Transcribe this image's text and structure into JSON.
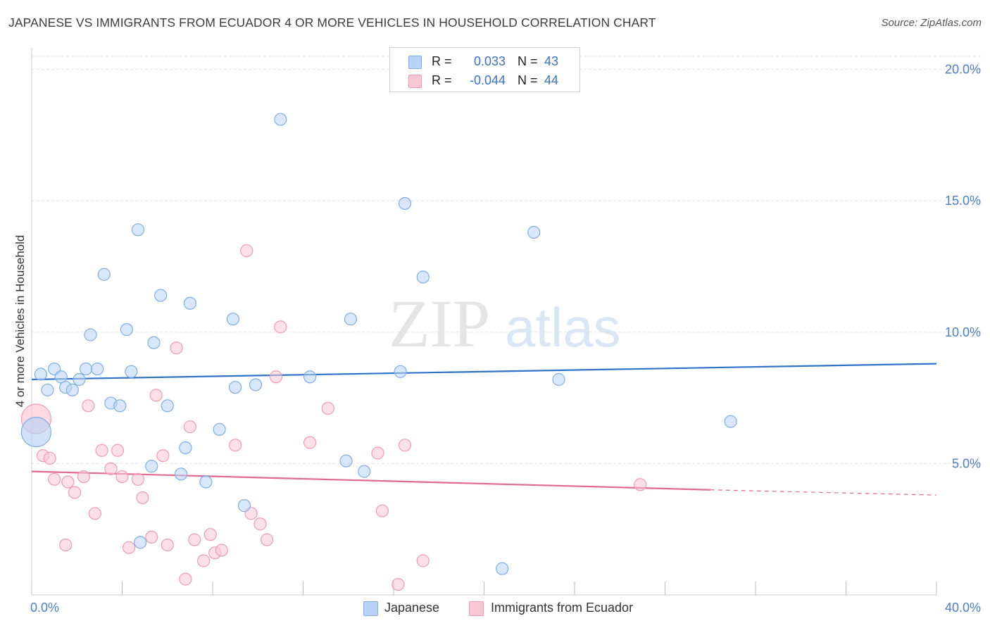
{
  "title": "JAPANESE VS IMMIGRANTS FROM ECUADOR 4 OR MORE VEHICLES IN HOUSEHOLD CORRELATION CHART",
  "source": "Source: ZipAtlas.com",
  "watermark": {
    "zip": "ZIP",
    "atlas": "atlas"
  },
  "stats": {
    "japanese": {
      "r_label": "R =",
      "r_value": "0.033",
      "n_label": "N =",
      "n_value": "43"
    },
    "ecuador": {
      "r_label": "R =",
      "r_value": "-0.044",
      "n_label": "N =",
      "n_value": "44"
    }
  },
  "legend": {
    "japanese": "Japanese",
    "ecuador": "Immigrants from Ecuador"
  },
  "colors": {
    "japanese_fill": "#b8d3f4",
    "japanese_stroke": "#7eaee6",
    "japanese_line": "#2f72c9",
    "ecuador_fill": "#f9c6d6",
    "ecuador_stroke": "#ee9bb5",
    "ecuador_line": "#e2698f",
    "tick_text": "#4a7ec8",
    "grid": "#e3e3e3"
  },
  "chart_data": {
    "type": "scatter",
    "title": "JAPANESE VS IMMIGRANTS FROM ECUADOR 4 OR MORE VEHICLES IN HOUSEHOLD CORRELATION CHART",
    "xlabel": "",
    "ylabel": "4 or more Vehicles in Household",
    "xlim": [
      0,
      40
    ],
    "ylim": [
      0,
      20.5
    ],
    "x_ticks": [
      "0.0%",
      "40.0%"
    ],
    "y_ticks": [
      {
        "value": 5,
        "label": "5.0%"
      },
      {
        "value": 10,
        "label": "10.0%"
      },
      {
        "value": 15,
        "label": "15.0%"
      },
      {
        "value": 20,
        "label": "20.0%"
      }
    ],
    "grid": true,
    "legend_position": "bottom-center",
    "series": [
      {
        "name": "Japanese",
        "trend": {
          "x0": 0,
          "y0": 8.2,
          "x1": 40,
          "y1": 8.8
        },
        "points": [
          [
            0.2,
            6.2
          ],
          [
            0.4,
            8.4
          ],
          [
            0.7,
            7.8
          ],
          [
            1.0,
            8.6
          ],
          [
            1.3,
            8.3
          ],
          [
            1.5,
            7.9
          ],
          [
            1.8,
            7.8
          ],
          [
            2.1,
            8.2
          ],
          [
            2.4,
            8.6
          ],
          [
            2.6,
            9.9
          ],
          [
            2.9,
            8.6
          ],
          [
            3.2,
            12.2
          ],
          [
            3.5,
            7.3
          ],
          [
            3.9,
            7.2
          ],
          [
            4.2,
            10.1
          ],
          [
            4.4,
            8.5
          ],
          [
            4.7,
            13.9
          ],
          [
            4.8,
            2.0
          ],
          [
            5.3,
            4.9
          ],
          [
            5.4,
            9.6
          ],
          [
            5.7,
            11.4
          ],
          [
            6.0,
            7.2
          ],
          [
            6.6,
            4.6
          ],
          [
            6.8,
            5.6
          ],
          [
            7.0,
            11.1
          ],
          [
            7.7,
            4.3
          ],
          [
            8.3,
            6.3
          ],
          [
            8.9,
            10.5
          ],
          [
            9.0,
            7.9
          ],
          [
            9.4,
            3.4
          ],
          [
            9.9,
            8.0
          ],
          [
            11.0,
            18.1
          ],
          [
            12.3,
            8.3
          ],
          [
            13.9,
            5.1
          ],
          [
            14.1,
            10.5
          ],
          [
            14.7,
            4.7
          ],
          [
            16.3,
            8.5
          ],
          [
            16.5,
            14.9
          ],
          [
            17.3,
            12.1
          ],
          [
            20.8,
            1.0
          ],
          [
            22.2,
            13.8
          ],
          [
            23.3,
            8.2
          ],
          [
            30.9,
            6.6
          ]
        ]
      },
      {
        "name": "Immigrants from Ecuador",
        "trend": {
          "x0": 0,
          "y0": 4.7,
          "x1": 30,
          "y1": 4.0,
          "dash_to_x": 40,
          "dash_to_y": 3.8
        },
        "points": [
          [
            0.2,
            6.7
          ],
          [
            0.5,
            5.3
          ],
          [
            0.8,
            5.2
          ],
          [
            1.0,
            4.4
          ],
          [
            1.5,
            1.9
          ],
          [
            1.6,
            4.3
          ],
          [
            1.9,
            3.9
          ],
          [
            2.3,
            4.5
          ],
          [
            2.5,
            7.2
          ],
          [
            2.8,
            3.1
          ],
          [
            3.1,
            5.5
          ],
          [
            3.5,
            4.8
          ],
          [
            3.8,
            5.5
          ],
          [
            4.0,
            4.5
          ],
          [
            4.3,
            1.8
          ],
          [
            4.7,
            4.4
          ],
          [
            4.9,
            3.7
          ],
          [
            5.3,
            2.2
          ],
          [
            5.5,
            7.6
          ],
          [
            5.8,
            5.3
          ],
          [
            6.0,
            1.9
          ],
          [
            6.4,
            9.4
          ],
          [
            6.8,
            0.6
          ],
          [
            7.0,
            6.4
          ],
          [
            7.2,
            2.1
          ],
          [
            7.6,
            1.3
          ],
          [
            7.9,
            2.3
          ],
          [
            8.1,
            1.6
          ],
          [
            8.4,
            1.7
          ],
          [
            9.0,
            5.7
          ],
          [
            9.5,
            13.1
          ],
          [
            9.7,
            3.1
          ],
          [
            10.1,
            2.7
          ],
          [
            10.4,
            2.1
          ],
          [
            10.8,
            8.3
          ],
          [
            11.0,
            10.2
          ],
          [
            12.3,
            5.8
          ],
          [
            13.1,
            7.1
          ],
          [
            15.3,
            5.4
          ],
          [
            15.5,
            3.2
          ],
          [
            16.2,
            0.4
          ],
          [
            16.5,
            5.7
          ],
          [
            17.3,
            1.3
          ],
          [
            26.9,
            4.2
          ]
        ]
      }
    ]
  }
}
